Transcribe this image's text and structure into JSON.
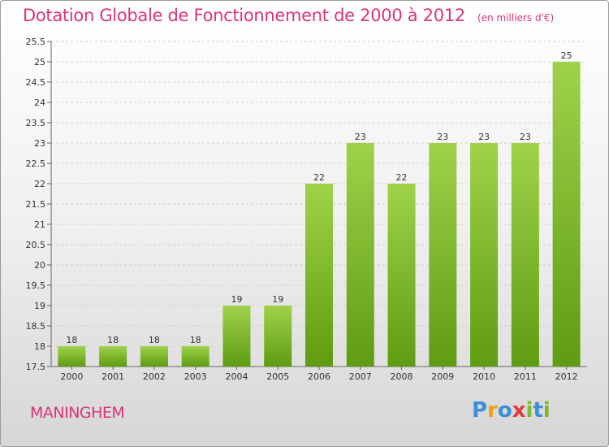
{
  "header": {
    "title": "Dotation Globale de Fonctionnement de 2000 à 2012",
    "unit": "(en milliers d'€)"
  },
  "footer": {
    "commune": "MANINGHEM"
  },
  "logo": {
    "letters": [
      {
        "ch": "P",
        "color": "#3a8fd6"
      },
      {
        "ch": "r",
        "color": "#f0a020"
      },
      {
        "ch": "o",
        "color": "#3a8fd6"
      },
      {
        "ch": "x",
        "color": "#e23a3a"
      },
      {
        "ch": "i",
        "color": "#80b830"
      },
      {
        "ch": "t",
        "color": "#3a8fd6"
      },
      {
        "ch": "i",
        "color": "#80b830"
      }
    ]
  },
  "chart_data": {
    "type": "bar",
    "categories": [
      "2000",
      "2001",
      "2002",
      "2003",
      "2004",
      "2005",
      "2006",
      "2007",
      "2008",
      "2009",
      "2010",
      "2011",
      "2012"
    ],
    "values": [
      18,
      18,
      18,
      18,
      19,
      19,
      22,
      23,
      22,
      23,
      23,
      23,
      25
    ],
    "ylim": [
      17.5,
      25.5
    ],
    "yticks": [
      "17.5",
      "18",
      "18.5",
      "19",
      "19.5",
      "20",
      "20.5",
      "21",
      "21.5",
      "22",
      "22.5",
      "23",
      "23.5",
      "24",
      "24.5",
      "25",
      "25.5"
    ],
    "grid": true,
    "bar_color": "#7fbf2f",
    "label_color": "#333333"
  }
}
